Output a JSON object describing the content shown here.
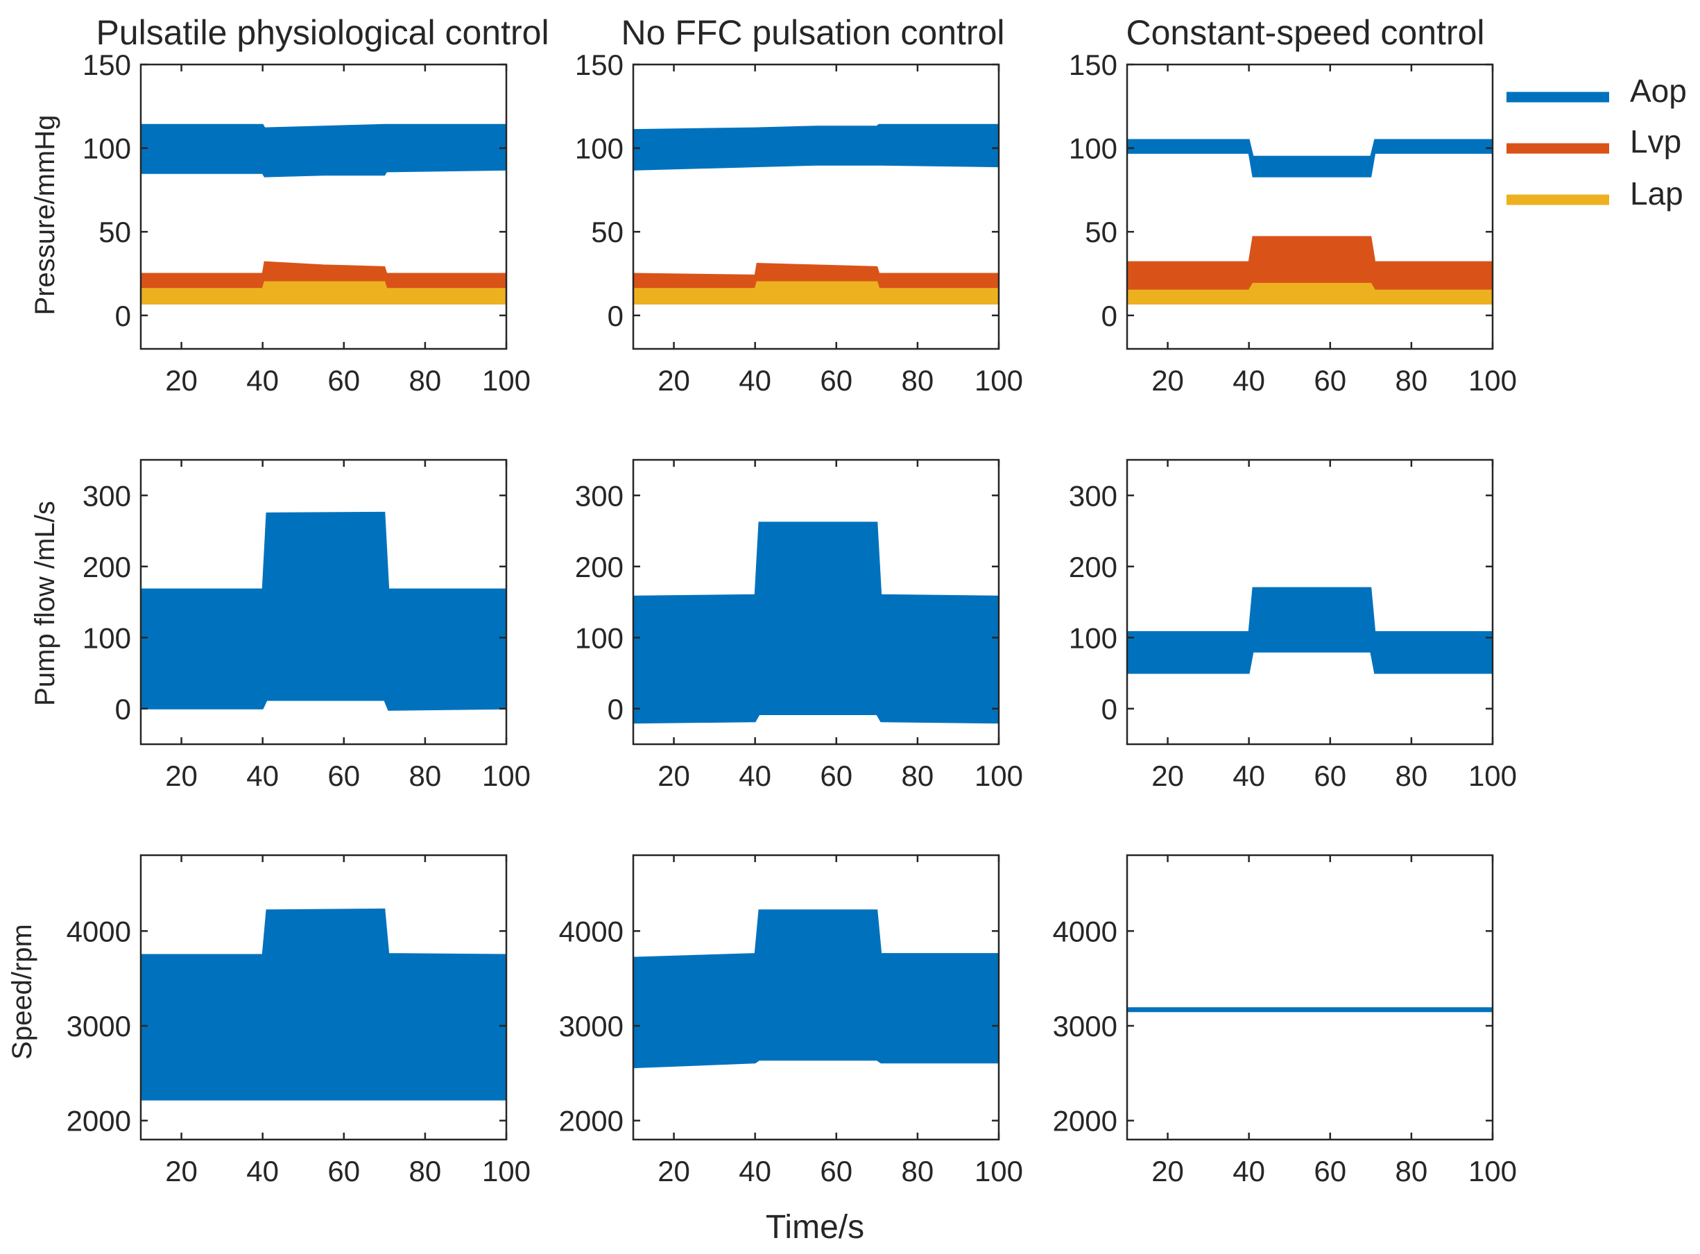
{
  "figure": {
    "xlabel": "Time/s",
    "columns": [
      "Pulsatile physiological control",
      "No FFC pulsation control",
      "Constant-speed control"
    ],
    "row_ylabels": [
      "Pressure/mmHg",
      "Pump flow /mL/s",
      "Speed/rpm"
    ],
    "legend": [
      {
        "name": "Aop",
        "color": "#0072BD"
      },
      {
        "name": "Lvp",
        "color": "#D95319"
      },
      {
        "name": "Lap",
        "color": "#EDB120"
      }
    ]
  },
  "chart_data": [
    {
      "type": "area",
      "panel": "pressure-pulsatile",
      "title": "Pulsatile physiological control",
      "ylabel": "Pressure/mmHg",
      "xlabel": "",
      "xlim": [
        10,
        100
      ],
      "ylim": [
        -20,
        150
      ],
      "xticks": [
        20,
        40,
        60,
        80,
        100
      ],
      "yticks": [
        0,
        50,
        100,
        150
      ],
      "series": [
        {
          "name": "Aop",
          "color": "#0072BD",
          "x": [
            10,
            40,
            40.5,
            55,
            70,
            70.5,
            100
          ],
          "upper": [
            114,
            114,
            112,
            113,
            114,
            114,
            114
          ],
          "lower": [
            85,
            85,
            83,
            84,
            84,
            86,
            87
          ]
        },
        {
          "name": "Lvp",
          "color": "#D95319",
          "x": [
            10,
            40,
            40.5,
            55,
            70,
            70.5,
            100
          ],
          "upper": [
            25,
            25,
            32,
            30,
            29,
            25,
            25
          ],
          "lower": [
            7,
            7,
            7,
            7,
            7,
            7,
            7
          ]
        },
        {
          "name": "Lap",
          "color": "#EDB120",
          "x": [
            10,
            40,
            40.5,
            55,
            70,
            70.5,
            100
          ],
          "upper": [
            16,
            16,
            20,
            20,
            20,
            16,
            16
          ],
          "lower": [
            7,
            7,
            7,
            7,
            7,
            7,
            7
          ]
        }
      ]
    },
    {
      "type": "area",
      "panel": "pressure-noffc",
      "title": "No FFC pulsation control",
      "ylabel": "",
      "xlabel": "",
      "xlim": [
        10,
        100
      ],
      "ylim": [
        -20,
        150
      ],
      "xticks": [
        20,
        40,
        60,
        80,
        100
      ],
      "yticks": [
        0,
        50,
        100,
        150
      ],
      "series": [
        {
          "name": "Aop",
          "color": "#0072BD",
          "x": [
            10,
            40,
            55,
            70,
            70.5,
            100
          ],
          "upper": [
            111,
            112,
            113,
            113,
            114,
            114
          ],
          "lower": [
            87,
            89,
            90,
            90,
            90,
            89
          ]
        },
        {
          "name": "Lvp",
          "color": "#D95319",
          "x": [
            10,
            40,
            40.5,
            55,
            70,
            70.5,
            100
          ],
          "upper": [
            25,
            24,
            31,
            30,
            29,
            25,
            25
          ],
          "lower": [
            7,
            7,
            7,
            7,
            7,
            7,
            7
          ]
        },
        {
          "name": "Lap",
          "color": "#EDB120",
          "x": [
            10,
            40,
            40.5,
            55,
            70,
            70.5,
            100
          ],
          "upper": [
            16,
            16,
            20,
            20,
            20,
            16,
            16
          ],
          "lower": [
            7,
            7,
            7,
            7,
            7,
            7,
            7
          ]
        }
      ]
    },
    {
      "type": "area",
      "panel": "pressure-constant",
      "title": "Constant-speed control",
      "ylabel": "",
      "xlabel": "",
      "xlim": [
        10,
        100
      ],
      "ylim": [
        -20,
        150
      ],
      "xticks": [
        20,
        40,
        60,
        80,
        100
      ],
      "yticks": [
        0,
        50,
        100,
        150
      ],
      "series": [
        {
          "name": "Aop",
          "color": "#0072BD",
          "x": [
            10,
            40,
            41,
            70,
            71,
            100
          ],
          "upper": [
            105,
            105,
            95,
            95,
            105,
            105
          ],
          "lower": [
            97,
            97,
            83,
            83,
            97,
            97
          ]
        },
        {
          "name": "Lvp",
          "color": "#D95319",
          "x": [
            10,
            40,
            41,
            70,
            71,
            100
          ],
          "upper": [
            32,
            32,
            47,
            47,
            32,
            32
          ],
          "lower": [
            7,
            7,
            7,
            7,
            7,
            7
          ]
        },
        {
          "name": "Lap",
          "color": "#EDB120",
          "x": [
            10,
            40,
            41,
            70,
            71,
            100
          ],
          "upper": [
            15,
            15,
            19,
            19,
            15,
            15
          ],
          "lower": [
            7,
            7,
            7,
            7,
            7,
            7
          ]
        }
      ]
    },
    {
      "type": "area",
      "panel": "flow-pulsatile",
      "title": "",
      "ylabel": "Pump flow /mL/s",
      "xlabel": "",
      "xlim": [
        10,
        100
      ],
      "ylim": [
        -50,
        350
      ],
      "xticks": [
        20,
        40,
        60,
        80,
        100
      ],
      "yticks": [
        0,
        100,
        200,
        300
      ],
      "series": [
        {
          "name": "Pump flow",
          "color": "#0072BD",
          "x": [
            10,
            40,
            41,
            70,
            71,
            100
          ],
          "upper": [
            168,
            168,
            275,
            276,
            168,
            168
          ],
          "lower": [
            0,
            0,
            12,
            12,
            -2,
            0
          ]
        }
      ]
    },
    {
      "type": "area",
      "panel": "flow-noffc",
      "title": "",
      "ylabel": "",
      "xlabel": "",
      "xlim": [
        10,
        100
      ],
      "ylim": [
        -50,
        350
      ],
      "xticks": [
        20,
        40,
        60,
        80,
        100
      ],
      "yticks": [
        0,
        100,
        200,
        300
      ],
      "series": [
        {
          "name": "Pump flow",
          "color": "#0072BD",
          "x": [
            10,
            40,
            41,
            70,
            71,
            100
          ],
          "upper": [
            158,
            160,
            262,
            262,
            160,
            158
          ],
          "lower": [
            -20,
            -18,
            -8,
            -8,
            -18,
            -20
          ]
        }
      ]
    },
    {
      "type": "area",
      "panel": "flow-constant",
      "title": "",
      "ylabel": "",
      "xlabel": "",
      "xlim": [
        10,
        100
      ],
      "ylim": [
        -50,
        350
      ],
      "xticks": [
        20,
        40,
        60,
        80,
        100
      ],
      "yticks": [
        0,
        100,
        200,
        300
      ],
      "series": [
        {
          "name": "Pump flow",
          "color": "#0072BD",
          "x": [
            10,
            40,
            41,
            70,
            71,
            100
          ],
          "upper": [
            108,
            108,
            170,
            170,
            108,
            108
          ],
          "lower": [
            50,
            50,
            80,
            80,
            50,
            50
          ]
        }
      ]
    },
    {
      "type": "area",
      "panel": "speed-pulsatile",
      "title": "",
      "ylabel": "Speed/rpm",
      "xlabel": "Time/s",
      "xlim": [
        10,
        100
      ],
      "ylim": [
        1800,
        4800
      ],
      "xticks": [
        20,
        40,
        60,
        80,
        100
      ],
      "yticks": [
        2000,
        3000,
        4000
      ],
      "series": [
        {
          "name": "Speed",
          "color": "#0072BD",
          "x": [
            10,
            40,
            41,
            70,
            71,
            100
          ],
          "upper": [
            3750,
            3750,
            4220,
            4230,
            3760,
            3750
          ],
          "lower": [
            2220,
            2220,
            2220,
            2220,
            2220,
            2220
          ]
        }
      ]
    },
    {
      "type": "area",
      "panel": "speed-noffc",
      "title": "",
      "ylabel": "",
      "xlabel": "Time/s",
      "xlim": [
        10,
        100
      ],
      "ylim": [
        1800,
        4800
      ],
      "xticks": [
        20,
        40,
        60,
        80,
        100
      ],
      "yticks": [
        2000,
        3000,
        4000
      ],
      "series": [
        {
          "name": "Speed",
          "color": "#0072BD",
          "x": [
            10,
            40,
            41,
            70,
            71,
            100
          ],
          "upper": [
            3720,
            3760,
            4220,
            4220,
            3760,
            3760
          ],
          "lower": [
            2560,
            2610,
            2640,
            2640,
            2610,
            2610
          ]
        }
      ]
    },
    {
      "type": "line",
      "panel": "speed-constant",
      "title": "",
      "ylabel": "",
      "xlabel": "Time/s",
      "xlim": [
        10,
        100
      ],
      "ylim": [
        1800,
        4800
      ],
      "xticks": [
        20,
        40,
        60,
        80,
        100
      ],
      "yticks": [
        2000,
        3000,
        4000
      ],
      "series": [
        {
          "name": "Speed",
          "color": "#0072BD",
          "x": [
            10,
            100
          ],
          "y": [
            3170,
            3170
          ]
        }
      ]
    }
  ]
}
